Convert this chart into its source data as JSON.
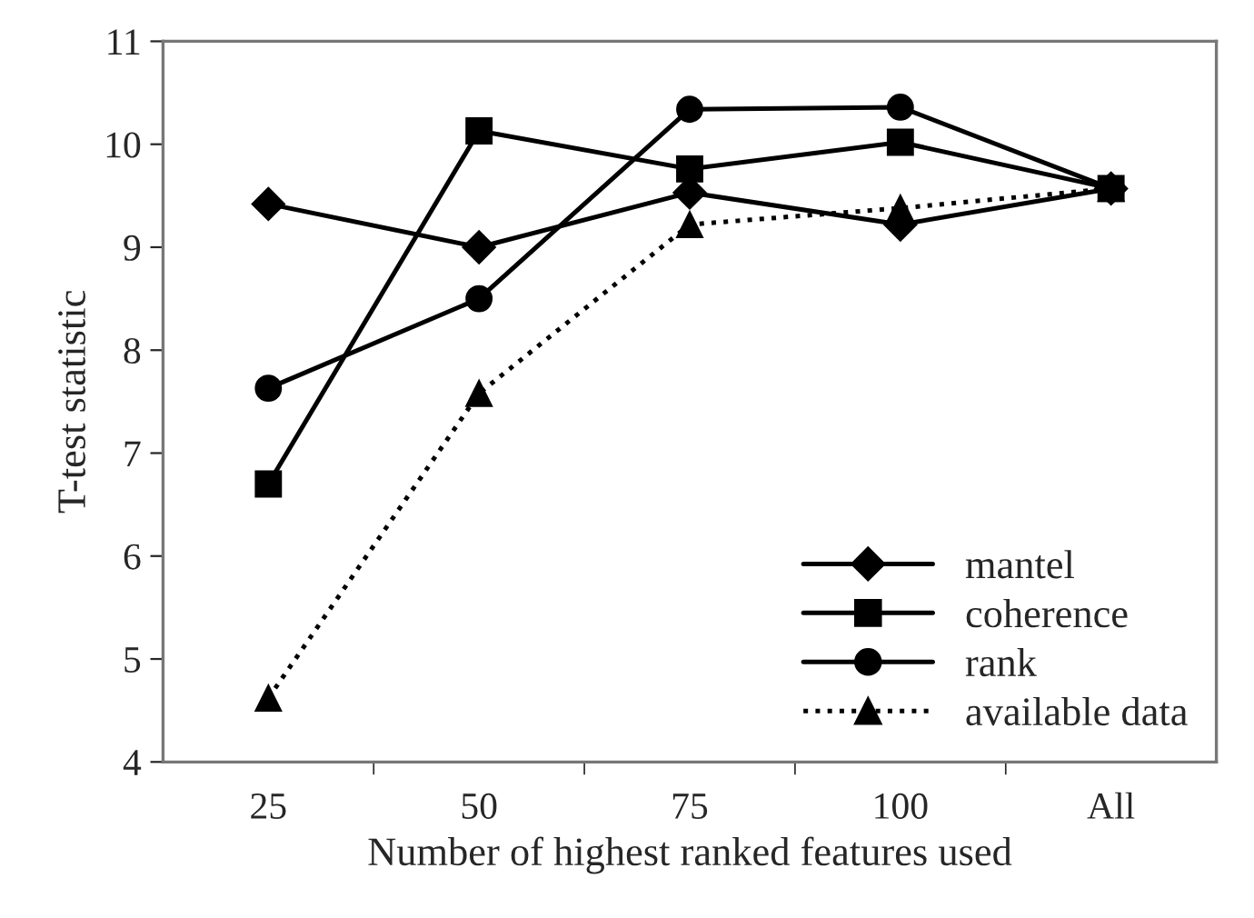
{
  "chart_data": {
    "type": "line",
    "xlabel": "Number of highest ranked features used",
    "ylabel": "T-test statistic",
    "categories": [
      "25",
      "50",
      "75",
      "100",
      "All"
    ],
    "series": [
      {
        "name": "mantel",
        "color": "#000000",
        "marker": "diamond",
        "line_style": "solid",
        "values": [
          9.42,
          9.0,
          9.53,
          9.22,
          9.57
        ]
      },
      {
        "name": "coherence",
        "color": "#000000",
        "marker": "square",
        "line_style": "solid",
        "values": [
          6.7,
          10.13,
          9.76,
          10.02,
          9.57
        ]
      },
      {
        "name": "rank",
        "color": "#000000",
        "marker": "circle",
        "line_style": "solid",
        "values": [
          7.63,
          8.5,
          10.34,
          10.36,
          9.57
        ]
      },
      {
        "name": "available data",
        "color": "#000000",
        "marker": "triangle",
        "line_style": "dotted",
        "values": [
          4.62,
          7.58,
          9.22,
          9.38,
          9.57
        ]
      }
    ],
    "ylim": [
      4,
      11
    ],
    "yticks": [
      4,
      5,
      6,
      7,
      8,
      9,
      10,
      11
    ],
    "grid": false,
    "legend": "bottom right"
  }
}
